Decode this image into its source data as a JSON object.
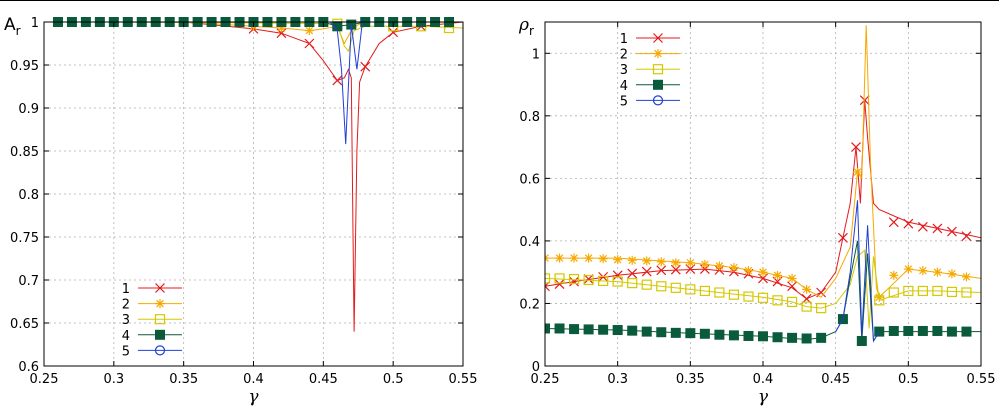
{
  "colors": {
    "s1": "#e41a1c",
    "s2": "#f7a900",
    "s3": "#d4c800",
    "s4": "#0a5a3c",
    "s5": "#1f3fd6",
    "grid": "#b0b0b0",
    "axis": "#000000"
  },
  "chart_data": [
    {
      "type": "line",
      "title": "",
      "xlabel": "γ",
      "ylabel_main": "A",
      "ylabel_sub": "r",
      "xlim": [
        0.25,
        0.55
      ],
      "ylim": [
        0.6,
        1.0
      ],
      "x_ticks": [
        "0.25",
        "0.3",
        "0.35",
        "0.4",
        "0.45",
        "0.5",
        "0.55"
      ],
      "x_tick_values": [
        0.25,
        0.3,
        0.35,
        0.4,
        0.45,
        0.5,
        0.55
      ],
      "y_ticks": [
        "0.6",
        "0.65",
        "0.7",
        "0.75",
        "0.8",
        "0.85",
        "0.9",
        "0.95",
        "1"
      ],
      "y_tick_values": [
        0.6,
        0.65,
        0.7,
        0.75,
        0.8,
        0.85,
        0.9,
        0.95,
        1.0
      ],
      "grid": true,
      "legend_position": "bottom-left",
      "series": [
        {
          "name": "1",
          "marker": "x",
          "color_key": "s1",
          "x": [
            0.25,
            0.3,
            0.35,
            0.4,
            0.42,
            0.44,
            0.45,
            0.46,
            0.465,
            0.468,
            0.47,
            0.472,
            0.474,
            0.476,
            0.48,
            0.49,
            0.5,
            0.52,
            0.55
          ],
          "y": [
            1.0,
            1.0,
            1.0,
            0.992,
            0.987,
            0.975,
            0.955,
            0.932,
            0.935,
            0.945,
            0.935,
            0.64,
            0.85,
            0.93,
            0.948,
            0.975,
            0.988,
            0.995,
            1.0
          ],
          "mx": [
            0.4,
            0.42,
            0.44,
            0.46,
            0.48,
            0.5,
            0.52,
            0.54
          ],
          "my": [
            0.992,
            0.987,
            0.975,
            0.932,
            0.948,
            0.988,
            0.995,
            0.998
          ]
        },
        {
          "name": "2",
          "marker": "star",
          "color_key": "s2",
          "x": [
            0.25,
            0.3,
            0.35,
            0.4,
            0.42,
            0.44,
            0.45,
            0.46,
            0.465,
            0.47,
            0.475,
            0.48,
            0.5,
            0.52,
            0.55
          ],
          "y": [
            1.0,
            1.0,
            1.0,
            0.995,
            0.993,
            0.99,
            0.992,
            0.995,
            0.975,
            0.99,
            0.997,
            1.0,
            1.0,
            1.0,
            1.0
          ],
          "mx": [
            0.4,
            0.42,
            0.44,
            0.46,
            0.48,
            0.5
          ],
          "my": [
            0.995,
            0.993,
            0.99,
            0.995,
            1.0,
            1.0
          ]
        },
        {
          "name": "3",
          "marker": "square-open",
          "color_key": "s3",
          "x": [
            0.25,
            0.3,
            0.4,
            0.46,
            0.465,
            0.468,
            0.472,
            0.48,
            0.5,
            0.52,
            0.55
          ],
          "y": [
            1.0,
            1.0,
            0.999,
            0.998,
            0.972,
            0.966,
            0.99,
            0.995,
            0.995,
            0.995,
            0.993
          ],
          "mx": [
            0.46,
            0.5,
            0.52,
            0.54
          ],
          "my": [
            0.998,
            0.995,
            0.995,
            0.993
          ]
        },
        {
          "name": "4",
          "marker": "square-filled",
          "color_key": "s4",
          "x": [
            0.25,
            0.3,
            0.35,
            0.4,
            0.45,
            0.46,
            0.47,
            0.48,
            0.5,
            0.55
          ],
          "y": [
            1.0,
            1.0,
            1.0,
            1.0,
            1.0,
            0.995,
            0.997,
            1.0,
            1.0,
            1.0
          ],
          "mx": [
            0.26,
            0.27,
            0.28,
            0.29,
            0.3,
            0.31,
            0.32,
            0.33,
            0.34,
            0.35,
            0.36,
            0.37,
            0.38,
            0.39,
            0.4,
            0.41,
            0.42,
            0.43,
            0.44,
            0.45,
            0.46,
            0.47,
            0.48,
            0.49,
            0.5,
            0.51,
            0.52,
            0.53,
            0.54
          ],
          "my": [
            1.0,
            1.0,
            1.0,
            1.0,
            1.0,
            1.0,
            1.0,
            1.0,
            1.0,
            1.0,
            1.0,
            1.0,
            1.0,
            1.0,
            1.0,
            1.0,
            1.0,
            1.0,
            1.0,
            1.0,
            0.995,
            0.997,
            1.0,
            1.0,
            1.0,
            1.0,
            1.0,
            1.0,
            1.0
          ]
        },
        {
          "name": "5",
          "marker": "circle-open",
          "color_key": "s5",
          "x": [
            0.25,
            0.3,
            0.4,
            0.45,
            0.455,
            0.46,
            0.463,
            0.466,
            0.47,
            0.474,
            0.478,
            0.49,
            0.55
          ],
          "y": [
            1.0,
            1.0,
            1.0,
            1.0,
            1.0,
            0.99,
            0.945,
            0.858,
            0.997,
            0.945,
            1.0,
            1.0,
            1.0
          ],
          "mx": [],
          "my": []
        }
      ]
    },
    {
      "type": "line",
      "title": "",
      "xlabel": "γ",
      "ylabel_main": "ρ",
      "ylabel_sub": "r",
      "xlim": [
        0.25,
        0.55
      ],
      "ylim": [
        0.0,
        1.1
      ],
      "x_ticks": [
        "0.25",
        "0.3",
        "0.35",
        "0.4",
        "0.45",
        "0.5",
        "0.55"
      ],
      "x_tick_values": [
        0.25,
        0.3,
        0.35,
        0.4,
        0.45,
        0.5,
        0.55
      ],
      "y_ticks": [
        "0",
        "0.2",
        "0.4",
        "0.6",
        "0.8",
        "1"
      ],
      "y_tick_values": [
        0.0,
        0.2,
        0.4,
        0.6,
        0.8,
        1.0
      ],
      "grid": true,
      "legend_position": "top-left",
      "series": [
        {
          "name": "1",
          "marker": "x",
          "color_key": "s1",
          "x": [
            0.25,
            0.27,
            0.3,
            0.33,
            0.36,
            0.38,
            0.4,
            0.42,
            0.43,
            0.44,
            0.45,
            0.455,
            0.46,
            0.464,
            0.467,
            0.47,
            0.472,
            0.476,
            0.48,
            0.5,
            0.52,
            0.55
          ],
          "y": [
            0.255,
            0.27,
            0.29,
            0.305,
            0.31,
            0.3,
            0.28,
            0.25,
            0.215,
            0.235,
            0.3,
            0.41,
            0.52,
            0.7,
            0.52,
            0.85,
            0.73,
            0.52,
            0.5,
            0.46,
            0.44,
            0.41
          ],
          "mx": [
            0.25,
            0.26,
            0.27,
            0.28,
            0.29,
            0.3,
            0.31,
            0.32,
            0.33,
            0.34,
            0.35,
            0.36,
            0.37,
            0.38,
            0.39,
            0.4,
            0.41,
            0.42,
            0.43,
            0.44,
            0.455,
            0.464,
            0.47,
            0.49,
            0.5,
            0.51,
            0.52,
            0.53,
            0.54
          ],
          "my": [
            0.255,
            0.262,
            0.27,
            0.278,
            0.285,
            0.29,
            0.296,
            0.302,
            0.306,
            0.308,
            0.31,
            0.31,
            0.307,
            0.302,
            0.295,
            0.28,
            0.27,
            0.255,
            0.215,
            0.235,
            0.41,
            0.7,
            0.85,
            0.46,
            0.455,
            0.445,
            0.44,
            0.43,
            0.415
          ]
        },
        {
          "name": "2",
          "marker": "star",
          "color_key": "s2",
          "x": [
            0.25,
            0.3,
            0.35,
            0.38,
            0.4,
            0.42,
            0.43,
            0.44,
            0.45,
            0.455,
            0.46,
            0.465,
            0.468,
            0.471,
            0.474,
            0.478,
            0.48,
            0.5,
            0.52,
            0.55
          ],
          "y": [
            0.345,
            0.345,
            0.33,
            0.315,
            0.3,
            0.28,
            0.245,
            0.22,
            0.28,
            0.33,
            0.38,
            0.62,
            0.6,
            1.09,
            0.65,
            0.25,
            0.22,
            0.31,
            0.3,
            0.28
          ],
          "mx": [
            0.25,
            0.26,
            0.27,
            0.28,
            0.29,
            0.3,
            0.31,
            0.32,
            0.33,
            0.34,
            0.35,
            0.36,
            0.37,
            0.38,
            0.39,
            0.4,
            0.41,
            0.42,
            0.43,
            0.465,
            0.48,
            0.49,
            0.5,
            0.51,
            0.52,
            0.53,
            0.54
          ],
          "my": [
            0.345,
            0.345,
            0.345,
            0.345,
            0.343,
            0.34,
            0.338,
            0.336,
            0.333,
            0.33,
            0.33,
            0.325,
            0.32,
            0.315,
            0.305,
            0.3,
            0.29,
            0.28,
            0.245,
            0.62,
            0.22,
            0.29,
            0.31,
            0.305,
            0.3,
            0.295,
            0.285
          ]
        },
        {
          "name": "3",
          "marker": "square-open",
          "color_key": "s3",
          "x": [
            0.25,
            0.3,
            0.35,
            0.4,
            0.42,
            0.43,
            0.44,
            0.45,
            0.46,
            0.465,
            0.47,
            0.473,
            0.476,
            0.48,
            0.5,
            0.52,
            0.55
          ],
          "y": [
            0.28,
            0.27,
            0.245,
            0.22,
            0.205,
            0.19,
            0.185,
            0.2,
            0.26,
            0.35,
            0.37,
            0.12,
            0.35,
            0.21,
            0.24,
            0.24,
            0.235
          ],
          "mx": [
            0.25,
            0.26,
            0.27,
            0.28,
            0.29,
            0.3,
            0.31,
            0.32,
            0.33,
            0.34,
            0.35,
            0.36,
            0.37,
            0.38,
            0.39,
            0.4,
            0.41,
            0.42,
            0.43,
            0.44,
            0.48,
            0.49,
            0.5,
            0.51,
            0.52,
            0.53,
            0.54
          ],
          "my": [
            0.28,
            0.28,
            0.278,
            0.275,
            0.272,
            0.27,
            0.265,
            0.26,
            0.255,
            0.25,
            0.245,
            0.24,
            0.235,
            0.228,
            0.222,
            0.218,
            0.21,
            0.205,
            0.19,
            0.185,
            0.21,
            0.235,
            0.24,
            0.24,
            0.24,
            0.237,
            0.235
          ]
        },
        {
          "name": "4",
          "marker": "square-filled",
          "color_key": "s4",
          "x": [
            0.25,
            0.3,
            0.35,
            0.4,
            0.42,
            0.43,
            0.44,
            0.45,
            0.455,
            0.46,
            0.465,
            0.468,
            0.472,
            0.476,
            0.48,
            0.5,
            0.55
          ],
          "y": [
            0.12,
            0.115,
            0.105,
            0.095,
            0.088,
            0.085,
            0.09,
            0.11,
            0.15,
            0.28,
            0.4,
            0.08,
            0.36,
            0.08,
            0.11,
            0.11,
            0.11
          ],
          "mx": [
            0.25,
            0.26,
            0.27,
            0.28,
            0.29,
            0.3,
            0.31,
            0.32,
            0.33,
            0.34,
            0.35,
            0.36,
            0.37,
            0.38,
            0.39,
            0.4,
            0.41,
            0.42,
            0.43,
            0.44,
            0.455,
            0.468,
            0.48,
            0.49,
            0.5,
            0.51,
            0.52,
            0.53,
            0.54
          ],
          "my": [
            0.12,
            0.12,
            0.118,
            0.117,
            0.116,
            0.115,
            0.113,
            0.11,
            0.108,
            0.106,
            0.105,
            0.103,
            0.1,
            0.098,
            0.096,
            0.095,
            0.092,
            0.09,
            0.088,
            0.09,
            0.15,
            0.08,
            0.11,
            0.112,
            0.112,
            0.112,
            0.112,
            0.11,
            0.11
          ]
        },
        {
          "name": "5",
          "marker": "circle-open",
          "color_key": "s5",
          "x": [
            0.45,
            0.455,
            0.46,
            0.465,
            0.468,
            0.472,
            0.476,
            0.48
          ],
          "y": [
            0.11,
            0.15,
            0.3,
            0.53,
            0.1,
            0.45,
            0.08,
            0.11
          ],
          "mx": [],
          "my": []
        }
      ]
    }
  ]
}
